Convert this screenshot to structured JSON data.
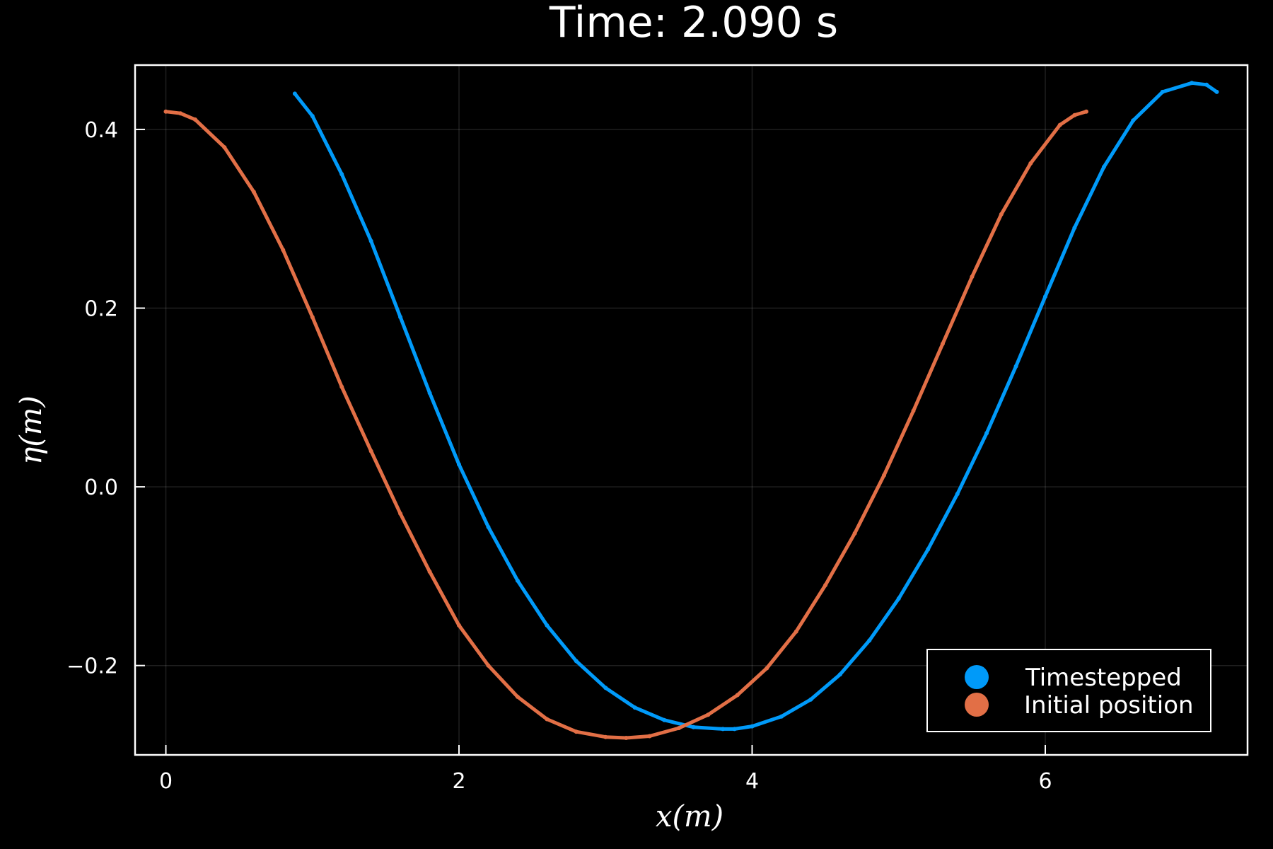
{
  "chart_data": {
    "type": "scatter",
    "title": "Time: 2.090 s",
    "xlabel": "x(m)",
    "ylabel": "η(m)",
    "xlim": [
      -0.21,
      7.38
    ],
    "ylim": [
      -0.3,
      0.472
    ],
    "xticks": [
      0,
      2,
      4,
      6
    ],
    "xtick_labels": [
      "0",
      "2",
      "4",
      "6"
    ],
    "yticks": [
      -0.2,
      0.0,
      0.2,
      0.4
    ],
    "ytick_labels": [
      "−0.2",
      "0.0",
      "0.2",
      "0.4"
    ],
    "grid": true,
    "legend_position": "bottom-right",
    "background": "#000000",
    "series": [
      {
        "name": "Timestepped",
        "color": "#009af9",
        "x": [
          0.88,
          1.0,
          1.2,
          1.4,
          1.6,
          1.8,
          2.0,
          2.2,
          2.4,
          2.6,
          2.8,
          3.0,
          3.2,
          3.4,
          3.6,
          3.8,
          3.88,
          4.0,
          4.2,
          4.4,
          4.6,
          4.8,
          5.0,
          5.2,
          5.4,
          5.6,
          5.8,
          6.0,
          6.2,
          6.4,
          6.6,
          6.8,
          7.0,
          7.1,
          7.17
        ],
        "y": [
          0.44,
          0.415,
          0.35,
          0.275,
          0.19,
          0.105,
          0.025,
          -0.045,
          -0.105,
          -0.155,
          -0.195,
          -0.225,
          -0.247,
          -0.261,
          -0.269,
          -0.271,
          -0.271,
          -0.268,
          -0.257,
          -0.238,
          -0.21,
          -0.172,
          -0.125,
          -0.07,
          -0.008,
          0.06,
          0.135,
          0.213,
          0.29,
          0.358,
          0.41,
          0.442,
          0.452,
          0.45,
          0.442
        ]
      },
      {
        "name": "Initial position",
        "color": "#e26f46",
        "x": [
          0.0,
          0.1,
          0.2,
          0.4,
          0.6,
          0.8,
          1.0,
          1.2,
          1.4,
          1.6,
          1.8,
          2.0,
          2.2,
          2.4,
          2.6,
          2.8,
          3.0,
          3.14,
          3.3,
          3.5,
          3.7,
          3.9,
          4.1,
          4.3,
          4.5,
          4.7,
          4.9,
          5.1,
          5.3,
          5.5,
          5.7,
          5.9,
          6.1,
          6.2,
          6.28
        ],
        "y": [
          0.42,
          0.418,
          0.411,
          0.38,
          0.33,
          0.265,
          0.19,
          0.112,
          0.04,
          -0.03,
          -0.095,
          -0.155,
          -0.2,
          -0.235,
          -0.26,
          -0.274,
          -0.28,
          -0.281,
          -0.279,
          -0.27,
          -0.255,
          -0.233,
          -0.203,
          -0.162,
          -0.11,
          -0.052,
          0.013,
          0.085,
          0.16,
          0.235,
          0.305,
          0.362,
          0.405,
          0.416,
          0.42
        ]
      }
    ]
  }
}
